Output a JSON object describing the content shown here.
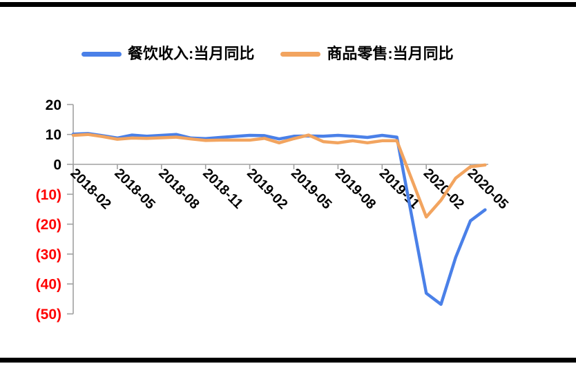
{
  "legend": {
    "items": [
      {
        "label": "餐饮收入:当月同比",
        "color": "#4A80E8"
      },
      {
        "label": "商品零售:当月同比",
        "color": "#F2A45F"
      }
    ]
  },
  "chart_data": {
    "type": "line",
    "title": "",
    "xlabel": "",
    "ylabel": "",
    "unit": "%",
    "grid": false,
    "legend_position": "top",
    "x": [
      "2018-02",
      "2018-03",
      "2018-04",
      "2018-05",
      "2018-06",
      "2018-07",
      "2018-08",
      "2018-09",
      "2018-10",
      "2018-11",
      "2018-12",
      "2019-02",
      "2019-03",
      "2019-04",
      "2019-05",
      "2019-06",
      "2019-07",
      "2019-08",
      "2019-09",
      "2019-10",
      "2019-11",
      "2019-12",
      "2020-02",
      "2020-03",
      "2020-04",
      "2020-05",
      "2020-06"
    ],
    "month_offsets": [
      0,
      1,
      2,
      3,
      4,
      5,
      6,
      7,
      8,
      9,
      10,
      12,
      13,
      14,
      15,
      16,
      17,
      18,
      19,
      20,
      21,
      22,
      24,
      25,
      26,
      27,
      28
    ],
    "series": [
      {
        "name": "餐饮收入:当月同比",
        "color": "#4A80E8",
        "values": [
          10.1,
          10.3,
          9.6,
          8.8,
          9.8,
          9.4,
          9.7,
          10.0,
          8.8,
          8.6,
          9.0,
          9.7,
          9.6,
          8.5,
          9.4,
          9.5,
          9.4,
          9.7,
          9.4,
          9.0,
          9.7,
          9.1,
          -43.1,
          -46.8,
          -31.1,
          -18.9,
          -15.2
        ]
      },
      {
        "name": "商品零售:当月同比",
        "color": "#F2A45F",
        "values": [
          9.7,
          10.0,
          9.3,
          8.4,
          8.8,
          8.7,
          8.9,
          9.1,
          8.5,
          8.0,
          8.1,
          8.1,
          8.7,
          7.2,
          8.6,
          9.8,
          7.6,
          7.2,
          7.9,
          7.2,
          7.9,
          7.9,
          -17.6,
          -12.0,
          -4.6,
          -0.8,
          -0.2
        ]
      }
    ],
    "x_tick_labels": [
      "2018-02",
      "2018-05",
      "2018-08",
      "2018-11",
      "2019-02",
      "2019-05",
      "2019-08",
      "2019-11",
      "2020-02",
      "2020-05"
    ],
    "x_tick_offsets": [
      0,
      3,
      6,
      9,
      12,
      15,
      18,
      21,
      24,
      27
    ],
    "y_ticks": [
      20,
      10,
      0,
      -10,
      -20,
      -30,
      -40,
      -50
    ],
    "y_tick_labels": [
      "20",
      "10",
      "0",
      "(10)",
      "(20)",
      "(30)",
      "(40)",
      "(50)"
    ],
    "ylim": [
      -50,
      20
    ],
    "axis_color": "#A0A0A0",
    "positive_label_color": "#000000",
    "negative_label_color": "#FF0000"
  }
}
